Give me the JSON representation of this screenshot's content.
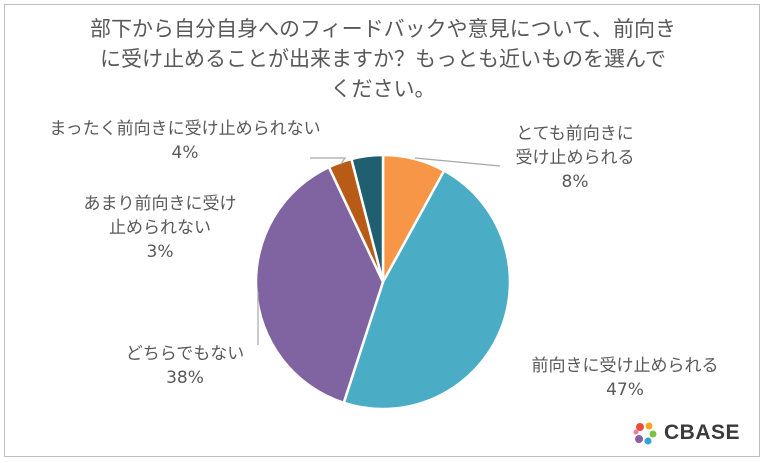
{
  "title_lines": [
    "部下から自分自身へのフィードバックや意見について、前向き",
    "に受け止めることが出来ますか？もっとも近いものを選んで",
    "ください。"
  ],
  "logo_text": "CBASE",
  "chart_data": {
    "type": "pie",
    "title": "部下から自分自身へのフィードバックや意見について、前向きに受け止めることが出来ますか？もっとも近いものを選んでください。",
    "start_angle_deg": 0,
    "direction": "clockwise",
    "slices": [
      {
        "label": "とても前向きに受け止められる",
        "label_lines": [
          "とても前向きに",
          "受け止められる"
        ],
        "value": 8,
        "display": "8%",
        "color": "#f79646"
      },
      {
        "label": "前向きに受け止められる",
        "label_lines": [
          "前向きに受け止められる"
        ],
        "value": 47,
        "display": "47%",
        "color": "#4bacc6"
      },
      {
        "label": "どちらでもない",
        "label_lines": [
          "どちらでもない"
        ],
        "value": 38,
        "display": "38%",
        "color": "#8064a2"
      },
      {
        "label": "あまり前向きに受け止められない",
        "label_lines": [
          "あまり前向きに受け",
          "止められない"
        ],
        "value": 3,
        "display": "3%",
        "color": "#c0504d"
      },
      {
        "label": "まったく前向きに受け止められない",
        "label_lines": [
          "まったく前向きに受け止められない"
        ],
        "value": 4,
        "display": "4%",
        "color": "#215968"
      }
    ]
  },
  "colors": {
    "slice_3": "#b85b16",
    "slice_4": "#1f5f70",
    "text": "#595959",
    "leader_line": "#a6a6a6",
    "border": "#bfbfbf"
  }
}
